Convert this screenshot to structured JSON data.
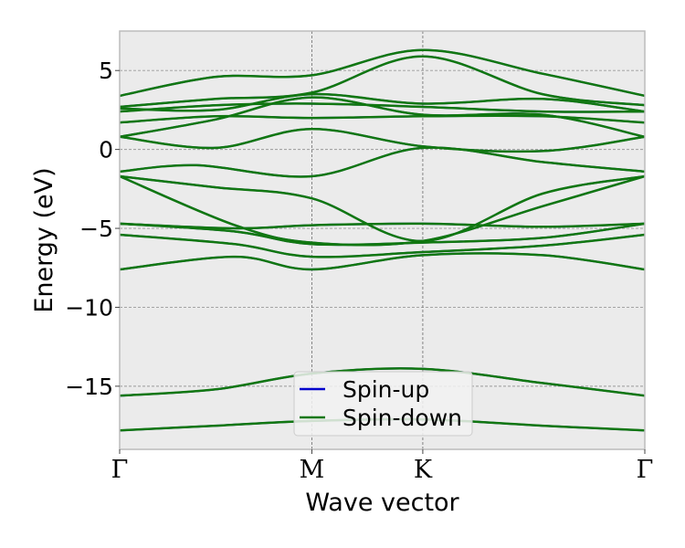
{
  "chart_data": {
    "type": "line",
    "title": "",
    "xlabel": "Wave vector",
    "ylabel": "Energy (eV)",
    "x_ticks": [
      {
        "pos": 0.0,
        "label": "Γ"
      },
      {
        "pos": 1.0,
        "label": "M"
      },
      {
        "pos": 1.577,
        "label": "K"
      },
      {
        "pos": 2.732,
        "label": "Γ"
      }
    ],
    "xlim": [
      0,
      2.732
    ],
    "ylim": [
      -19,
      7.5
    ],
    "yticks": [
      5,
      0,
      -5,
      -10,
      -15
    ],
    "ytick_labels": [
      "5",
      "0",
      "−5",
      "−10",
      "−15"
    ],
    "fermi_level": 0,
    "grid": true,
    "grid_style": "dashed",
    "vertical_lines_at_high_symmetry_points": true,
    "background_color": "#ebebeb",
    "legend": {
      "placement": "bottom-center",
      "entries": [
        {
          "label": "Spin-up",
          "color": "#0000cc"
        },
        {
          "label": "Spin-down",
          "color": "#117711"
        }
      ]
    },
    "series": [
      {
        "name": "Spin-up",
        "color": "#0000cc",
        "note_hidden_under_spin_down": true
      },
      {
        "name": "Spin-down",
        "color": "#117711"
      }
    ],
    "bands": [
      [
        [
          0,
          -17.8
        ],
        [
          0.5,
          -17.5
        ],
        [
          1,
          -17.2
        ],
        [
          1.577,
          -17.1
        ],
        [
          2.2,
          -17.5
        ],
        [
          2.732,
          -17.8
        ]
      ],
      [
        [
          0,
          -15.6
        ],
        [
          0.5,
          -15.2
        ],
        [
          1,
          -14.2
        ],
        [
          1.577,
          -13.9
        ],
        [
          2.2,
          -14.8
        ],
        [
          2.732,
          -15.6
        ]
      ],
      [
        [
          0,
          -7.6
        ],
        [
          0.6,
          -6.8
        ],
        [
          1,
          -7.6
        ],
        [
          1.577,
          -6.7
        ],
        [
          2.2,
          -6.7
        ],
        [
          2.732,
          -7.6
        ]
      ],
      [
        [
          0,
          -5.4
        ],
        [
          0.6,
          -6.0
        ],
        [
          1,
          -6.8
        ],
        [
          1.577,
          -6.5
        ],
        [
          2.2,
          -6.1
        ],
        [
          2.732,
          -5.4
        ]
      ],
      [
        [
          0,
          -4.7
        ],
        [
          0.6,
          -5.2
        ],
        [
          1,
          -6.0
        ],
        [
          1.577,
          -5.9
        ],
        [
          2.2,
          -5.6
        ],
        [
          2.732,
          -4.7
        ]
      ],
      [
        [
          0,
          -4.7
        ],
        [
          0.6,
          -5.0
        ],
        [
          1,
          -4.8
        ],
        [
          1.577,
          -4.7
        ],
        [
          2.2,
          -4.9
        ],
        [
          2.732,
          -4.7
        ]
      ],
      [
        [
          0,
          -1.7
        ],
        [
          0.6,
          -4.8
        ],
        [
          1,
          -5.9
        ],
        [
          1.577,
          -5.8
        ],
        [
          2.2,
          -3.6
        ],
        [
          2.732,
          -1.7
        ]
      ],
      [
        [
          0,
          -1.7
        ],
        [
          0.5,
          -2.4
        ],
        [
          1,
          -3.1
        ],
        [
          1.577,
          -5.8
        ],
        [
          2.2,
          -2.8
        ],
        [
          2.732,
          -1.7
        ]
      ],
      [
        [
          0,
          -1.4
        ],
        [
          0.4,
          -1.0
        ],
        [
          1,
          -1.7
        ],
        [
          1.577,
          0.1
        ],
        [
          2.2,
          -0.8
        ],
        [
          2.732,
          -1.4
        ]
      ],
      [
        [
          0,
          0.8
        ],
        [
          0.5,
          0.1
        ],
        [
          1,
          1.3
        ],
        [
          1.577,
          0.2
        ],
        [
          2.2,
          -0.1
        ],
        [
          2.732,
          0.8
        ]
      ],
      [
        [
          0,
          0.8
        ],
        [
          0.5,
          1.9
        ],
        [
          1,
          3.3
        ],
        [
          1.577,
          2.2
        ],
        [
          2.2,
          2.2
        ],
        [
          2.732,
          0.8
        ]
      ],
      [
        [
          0,
          1.7
        ],
        [
          0.5,
          2.1
        ],
        [
          1,
          2.0
        ],
        [
          1.577,
          2.1
        ],
        [
          2.2,
          2.1
        ],
        [
          2.732,
          1.7
        ]
      ],
      [
        [
          0,
          2.4
        ],
        [
          0.5,
          2.8
        ],
        [
          1,
          2.9
        ],
        [
          1.577,
          2.7
        ],
        [
          2.2,
          2.4
        ],
        [
          2.732,
          2.4
        ]
      ],
      [
        [
          0,
          2.6
        ],
        [
          0.5,
          2.5
        ],
        [
          1,
          3.5
        ],
        [
          1.577,
          2.9
        ],
        [
          2.2,
          3.2
        ],
        [
          2.732,
          2.4
        ]
      ],
      [
        [
          0,
          2.7
        ],
        [
          0.5,
          3.2
        ],
        [
          1,
          3.6
        ],
        [
          1.577,
          5.9
        ],
        [
          2.2,
          3.5
        ],
        [
          2.732,
          2.8
        ]
      ],
      [
        [
          0,
          3.4
        ],
        [
          0.5,
          4.6
        ],
        [
          1,
          4.7
        ],
        [
          1.577,
          6.3
        ],
        [
          2.2,
          4.8
        ],
        [
          2.732,
          3.4
        ]
      ]
    ]
  }
}
